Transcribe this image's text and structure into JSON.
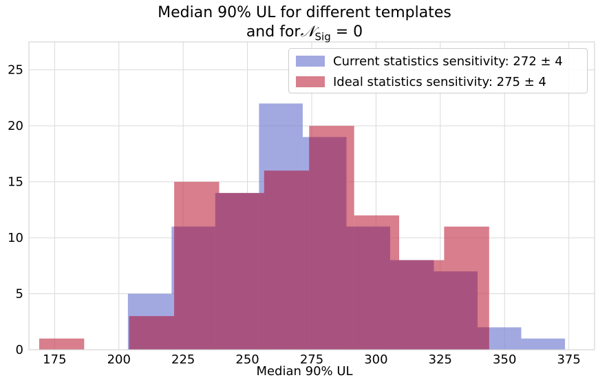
{
  "chart_data": {
    "type": "histogram",
    "title_line1": "Median 90% UL for different templates",
    "title_line2": "and for",
    "title_math": "𝒩",
    "title_math_sub": "Sig",
    "title_math_rest": "= 0",
    "xlabel": "Median 90% UL",
    "xlim": [
      165,
      385
    ],
    "ylim": [
      0,
      27.5
    ],
    "x_ticks": [
      175,
      200,
      225,
      250,
      275,
      300,
      325,
      350,
      375
    ],
    "y_ticks": [
      0,
      5,
      10,
      15,
      20,
      25
    ],
    "grid": true,
    "legend_position": "top-right",
    "series": [
      {
        "name": "Current statistics sensitivity: 272 ± 4",
        "color": "#7b84d4",
        "bin_edges": [
          203.5,
          220.5,
          237.5,
          254.5,
          271.5,
          288.5,
          305.5,
          322.5,
          339.5,
          356.5,
          373.5
        ],
        "values": [
          5,
          11,
          14,
          22,
          19,
          11,
          8,
          7,
          2,
          1
        ]
      },
      {
        "name": "Ideal statistics sensitivity: 275 ± 4",
        "color": "#c8475b",
        "bin_edges": [
          169,
          186.5,
          204,
          221.5,
          239,
          256.5,
          274,
          291.5,
          309,
          326.5,
          344
        ],
        "values": [
          1,
          0,
          3,
          15,
          14,
          16,
          20,
          12,
          8,
          11
        ]
      }
    ],
    "overlap_color": "#a8537f"
  }
}
